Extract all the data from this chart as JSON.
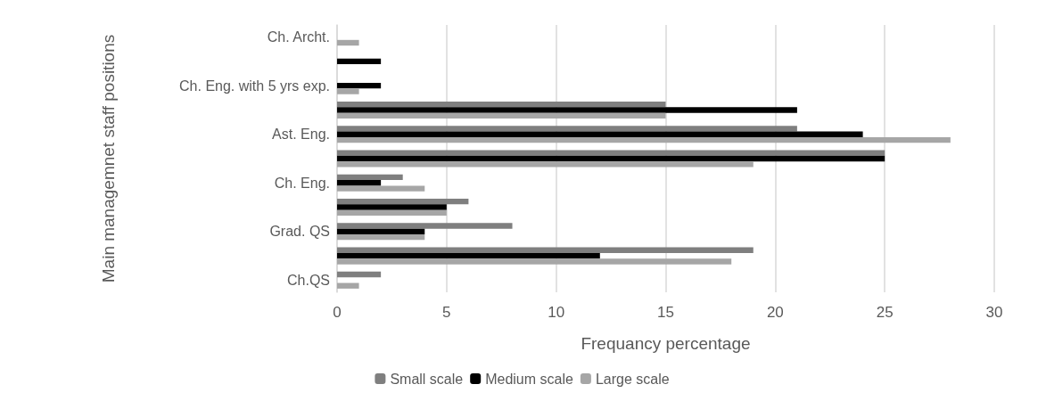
{
  "chart_data": {
    "type": "bar",
    "orientation": "horizontal",
    "xlabel": "Frequancy percentage",
    "ylabel": "Main managemnet staff positions",
    "categories": [
      "Ch. Archt.",
      null,
      "Ch. Eng. with 5 yrs exp.",
      null,
      "Ast. Eng.",
      null,
      "Ch. Eng.",
      null,
      "Grad. QS",
      null,
      "Ch.QS"
    ],
    "series": [
      {
        "name": "Small scale",
        "color": "#7f7f7f",
        "values": [
          0,
          0,
          0,
          15,
          21,
          25,
          3,
          6,
          8,
          19,
          2
        ]
      },
      {
        "name": "Medium scale",
        "color": "#000000",
        "values": [
          0,
          2,
          2,
          21,
          24,
          25,
          2,
          5,
          4,
          12,
          0
        ]
      },
      {
        "name": "Large scale",
        "color": "#a6a6a6",
        "values": [
          1,
          0,
          1,
          15,
          28,
          19,
          4,
          5,
          4,
          18,
          1
        ]
      }
    ],
    "xlim": [
      0,
      30
    ],
    "xticks": [
      0,
      5,
      10,
      15,
      20,
      25,
      30
    ],
    "grid": "x",
    "legend": "bottom"
  }
}
